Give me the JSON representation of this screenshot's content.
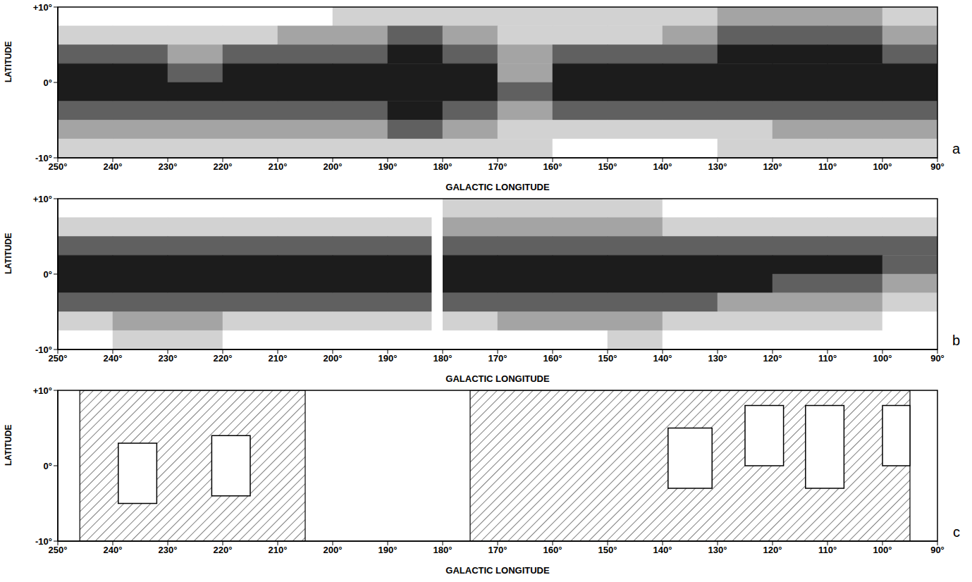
{
  "chart_data": [
    {
      "panel": "a",
      "type": "heatmap",
      "x_label": "GALACTIC LONGITUDE",
      "y_label": "LATITUDE",
      "xlim": [
        250,
        90
      ],
      "xticks": [
        {
          "value": 250,
          "label": "250°"
        },
        {
          "value": 240,
          "label": "240°"
        },
        {
          "value": 230,
          "label": "230°"
        },
        {
          "value": 220,
          "label": "220°"
        },
        {
          "value": 210,
          "label": "210°"
        },
        {
          "value": 200,
          "label": "200°"
        },
        {
          "value": 190,
          "label": "190°"
        },
        {
          "value": 180,
          "label": "180°"
        },
        {
          "value": 170,
          "label": "170°"
        },
        {
          "value": 160,
          "label": "160°"
        },
        {
          "value": 150,
          "label": "150°"
        },
        {
          "value": 140,
          "label": "140°"
        },
        {
          "value": 130,
          "label": "130°"
        },
        {
          "value": 120,
          "label": "120°"
        },
        {
          "value": 110,
          "label": "110°"
        },
        {
          "value": 100,
          "label": "100°"
        },
        {
          "value": 90,
          "label": "90°"
        }
      ],
      "ylim": [
        -10,
        10
      ],
      "yticks": [
        {
          "value": 10,
          "label": "+10°"
        },
        {
          "value": 0,
          "label": "0°"
        },
        {
          "value": -10,
          "label": "-10°"
        }
      ],
      "lon_edges": [
        250,
        240,
        230,
        220,
        210,
        200,
        190,
        180,
        170,
        160,
        150,
        140,
        130,
        120,
        110,
        100,
        90
      ],
      "lat_edges": [
        10,
        7.5,
        5,
        2.5,
        0,
        -2.5,
        -5,
        -7.5,
        -10
      ],
      "cells": [
        [
          0,
          0,
          0,
          0,
          0,
          1,
          1,
          1,
          1,
          1,
          1,
          1,
          2,
          2,
          2,
          1
        ],
        [
          1,
          1,
          1,
          1,
          2,
          2,
          3,
          2,
          1,
          1,
          1,
          2,
          3,
          3,
          3,
          2
        ],
        [
          3,
          3,
          2,
          3,
          3,
          3,
          4,
          3,
          2,
          3,
          3,
          3,
          4,
          4,
          4,
          3
        ],
        [
          4,
          4,
          3,
          4,
          4,
          4,
          4,
          4,
          2,
          4,
          4,
          4,
          4,
          4,
          4,
          4
        ],
        [
          4,
          4,
          4,
          4,
          4,
          4,
          4,
          4,
          3,
          4,
          4,
          4,
          4,
          4,
          4,
          4
        ],
        [
          3,
          3,
          3,
          3,
          3,
          3,
          4,
          3,
          2,
          3,
          3,
          3,
          3,
          3,
          3,
          3
        ],
        [
          2,
          2,
          2,
          2,
          2,
          2,
          3,
          2,
          1,
          1,
          1,
          1,
          1,
          2,
          2,
          2
        ],
        [
          1,
          1,
          1,
          1,
          1,
          1,
          1,
          1,
          1,
          0,
          0,
          0,
          1,
          1,
          1,
          1
        ]
      ],
      "color_range": [
        0,
        4
      ]
    },
    {
      "panel": "b",
      "type": "heatmap",
      "x_label": "GALACTIC LONGITUDE",
      "y_label": "LATITUDE",
      "xlim": [
        250,
        90
      ],
      "xticks": [
        {
          "value": 250,
          "label": "250°"
        },
        {
          "value": 240,
          "label": "240°"
        },
        {
          "value": 230,
          "label": "230°"
        },
        {
          "value": 220,
          "label": "220°"
        },
        {
          "value": 210,
          "label": "210°"
        },
        {
          "value": 200,
          "label": "200°"
        },
        {
          "value": 190,
          "label": "190°"
        },
        {
          "value": 180,
          "label": "180°"
        },
        {
          "value": 170,
          "label": "170°"
        },
        {
          "value": 160,
          "label": "160°"
        },
        {
          "value": 150,
          "label": "150°"
        },
        {
          "value": 140,
          "label": "140°"
        },
        {
          "value": 130,
          "label": "130°"
        },
        {
          "value": 120,
          "label": "120°"
        },
        {
          "value": 110,
          "label": "110°"
        },
        {
          "value": 100,
          "label": "100°"
        },
        {
          "value": 90,
          "label": "90°"
        }
      ],
      "ylim": [
        -10,
        10
      ],
      "yticks": [
        {
          "value": 10,
          "label": "+10°"
        },
        {
          "value": 0,
          "label": "0°"
        },
        {
          "value": -10,
          "label": "-10°"
        }
      ],
      "lon_edges": [
        250,
        240,
        230,
        220,
        210,
        200,
        190,
        180,
        170,
        160,
        150,
        140,
        130,
        120,
        110,
        100,
        90
      ],
      "lat_edges": [
        10,
        7.5,
        5,
        2.5,
        0,
        -2.5,
        -5,
        -7.5,
        -10
      ],
      "cells": [
        [
          0,
          0,
          0,
          0,
          0,
          0,
          0,
          1,
          1,
          1,
          1,
          0,
          0,
          0,
          0,
          0
        ],
        [
          1,
          1,
          1,
          1,
          1,
          1,
          1,
          2,
          2,
          2,
          2,
          1,
          1,
          1,
          1,
          1
        ],
        [
          3,
          3,
          3,
          3,
          3,
          3,
          3,
          3,
          3,
          3,
          3,
          3,
          3,
          3,
          3,
          3
        ],
        [
          4,
          4,
          4,
          4,
          4,
          4,
          4,
          4,
          4,
          4,
          4,
          4,
          4,
          4,
          4,
          3
        ],
        [
          4,
          4,
          4,
          4,
          4,
          4,
          4,
          4,
          4,
          4,
          4,
          4,
          4,
          3,
          3,
          2
        ],
        [
          3,
          3,
          3,
          3,
          3,
          3,
          3,
          3,
          3,
          3,
          3,
          3,
          2,
          2,
          2,
          1
        ],
        [
          1,
          2,
          2,
          1,
          1,
          1,
          1,
          1,
          2,
          2,
          2,
          1,
          1,
          1,
          1,
          0
        ],
        [
          0,
          1,
          1,
          0,
          0,
          0,
          0,
          0,
          0,
          0,
          1,
          0,
          0,
          0,
          0,
          0
        ]
      ],
      "color_range": [
        0,
        4
      ],
      "no_data": [
        {
          "lon": [
            182,
            180
          ],
          "lat": [
            -10,
            10
          ]
        }
      ]
    },
    {
      "panel": "c",
      "type": "regions",
      "x_label": "GALACTIC LONGITUDE",
      "y_label": "LATITUDE",
      "xlim": [
        250,
        90
      ],
      "xticks": [
        {
          "value": 250,
          "label": "250°"
        },
        {
          "value": 240,
          "label": "240°"
        },
        {
          "value": 230,
          "label": "230°"
        },
        {
          "value": 220,
          "label": "220°"
        },
        {
          "value": 210,
          "label": "210°"
        },
        {
          "value": 200,
          "label": "200°"
        },
        {
          "value": 190,
          "label": "190°"
        },
        {
          "value": 180,
          "label": "180°"
        },
        {
          "value": 170,
          "label": "170°"
        },
        {
          "value": 160,
          "label": "160°"
        },
        {
          "value": 150,
          "label": "150°"
        },
        {
          "value": 140,
          "label": "140°"
        },
        {
          "value": 130,
          "label": "130°"
        },
        {
          "value": 120,
          "label": "120°"
        },
        {
          "value": 110,
          "label": "110°"
        },
        {
          "value": 100,
          "label": "100°"
        },
        {
          "value": 90,
          "label": "90°"
        }
      ],
      "ylim": [
        -10,
        10
      ],
      "yticks": [
        {
          "value": 10,
          "label": "+10°"
        },
        {
          "value": 0,
          "label": "0°"
        },
        {
          "value": -10,
          "label": "-10°"
        }
      ],
      "hatched_regions": [
        {
          "lon": [
            246,
            205
          ],
          "lat": [
            -10,
            10
          ]
        },
        {
          "lon": [
            175,
            95
          ],
          "lat": [
            -10,
            10
          ]
        }
      ],
      "excluded_boxes": [
        {
          "lon": [
            239,
            232
          ],
          "lat": [
            -5,
            3
          ]
        },
        {
          "lon": [
            222,
            215
          ],
          "lat": [
            -4,
            4
          ]
        },
        {
          "lon": [
            139,
            131
          ],
          "lat": [
            -3,
            5
          ]
        },
        {
          "lon": [
            125,
            118
          ],
          "lat": [
            0,
            8
          ]
        },
        {
          "lon": [
            114,
            107
          ],
          "lat": [
            -3,
            8
          ]
        },
        {
          "lon": [
            100,
            95
          ],
          "lat": [
            0,
            8
          ]
        }
      ]
    }
  ]
}
